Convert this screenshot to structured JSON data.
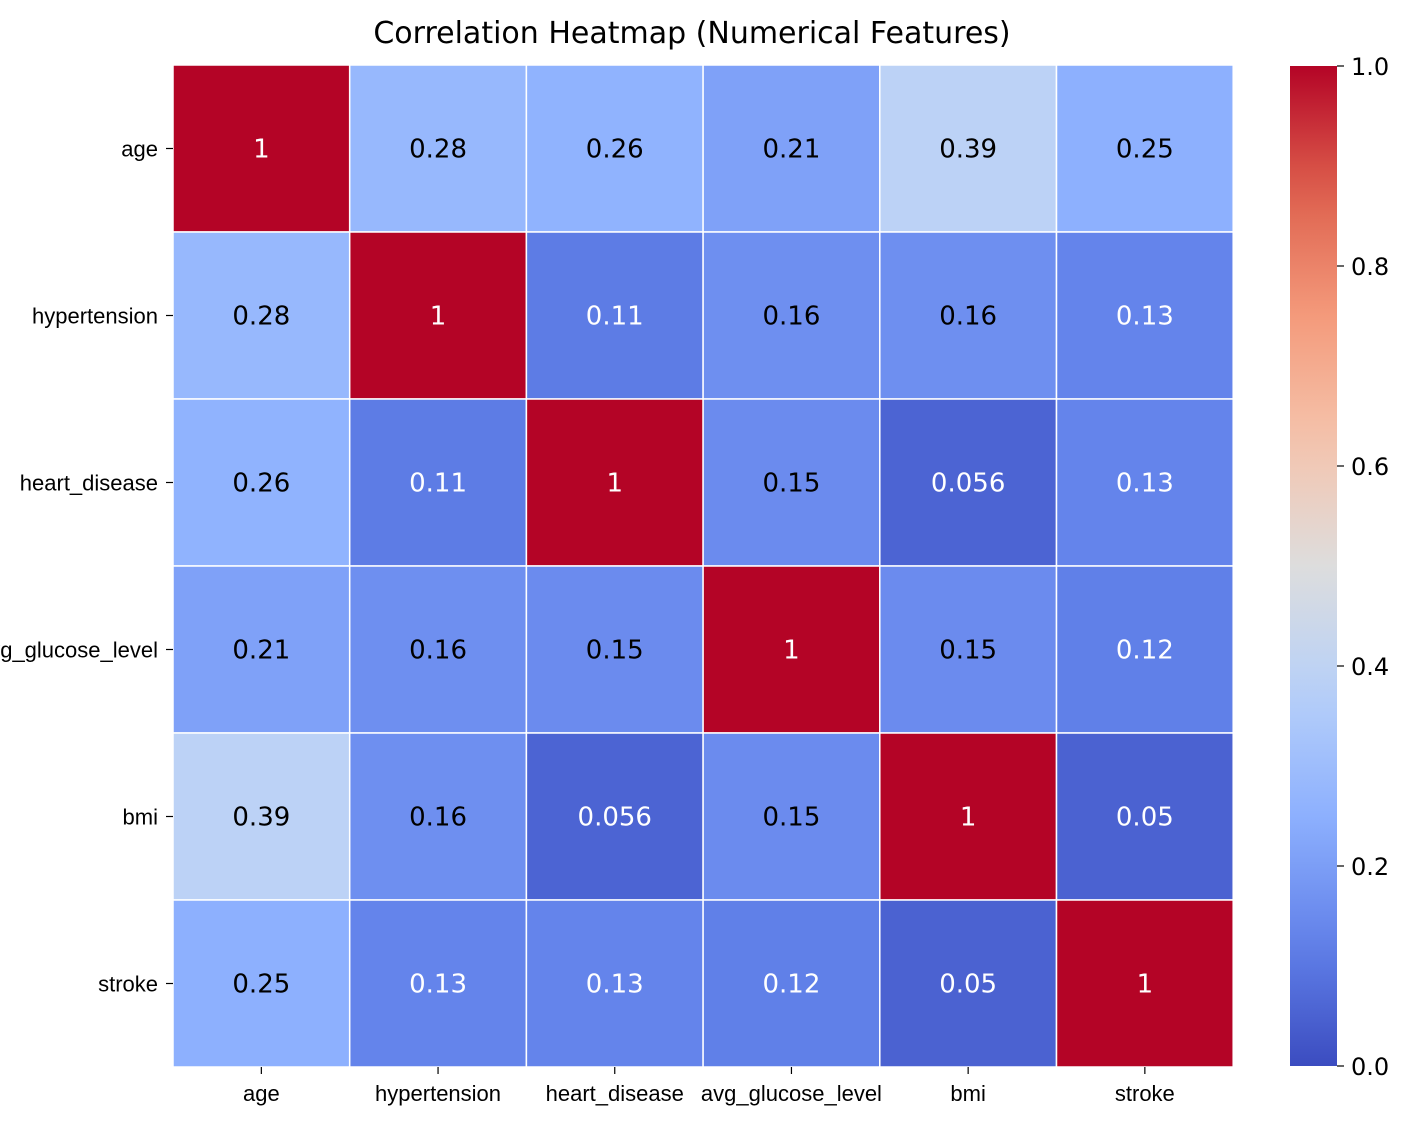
{
  "chart_data": {
    "type": "heatmap",
    "title": "Correlation Heatmap (Numerical Features)",
    "x_labels": [
      "age",
      "hypertension",
      "heart_disease",
      "avg_glucose_level",
      "bmi",
      "stroke"
    ],
    "y_labels": [
      "age",
      "hypertension",
      "heart_disease",
      "avg_glucose_level",
      "bmi",
      "stroke"
    ],
    "values": [
      [
        1,
        0.28,
        0.26,
        0.21,
        0.39,
        0.25
      ],
      [
        0.28,
        1,
        0.11,
        0.16,
        0.16,
        0.13
      ],
      [
        0.26,
        0.11,
        1,
        0.15,
        0.056,
        0.13
      ],
      [
        0.21,
        0.16,
        0.15,
        1,
        0.15,
        0.12
      ],
      [
        0.39,
        0.16,
        0.056,
        0.15,
        1,
        0.05
      ],
      [
        0.25,
        0.13,
        0.13,
        0.12,
        0.05,
        1
      ]
    ],
    "cell_labels": [
      [
        "1",
        "0.28",
        "0.26",
        "0.21",
        "0.39",
        "0.25"
      ],
      [
        "0.28",
        "1",
        "0.11",
        "0.16",
        "0.16",
        "0.13"
      ],
      [
        "0.26",
        "0.11",
        "1",
        "0.15",
        "0.056",
        "0.13"
      ],
      [
        "0.21",
        "0.16",
        "0.15",
        "1",
        "0.15",
        "0.12"
      ],
      [
        "0.39",
        "0.16",
        "0.056",
        "0.15",
        "1",
        "0.05"
      ],
      [
        "0.25",
        "0.13",
        "0.13",
        "0.12",
        "0.05",
        "1"
      ]
    ],
    "colormap": "coolwarm",
    "vmin": 0.0,
    "vmax": 1.0,
    "colorbar_ticks": [
      "0.0",
      "0.2",
      "0.4",
      "0.6",
      "0.8",
      "1.0"
    ],
    "colorbar_tick_values": [
      0.0,
      0.2,
      0.4,
      0.6,
      0.8,
      1.0
    ],
    "colorbar_placement": "right",
    "annotations_shown": true,
    "gridline_color": "#ffffff"
  }
}
